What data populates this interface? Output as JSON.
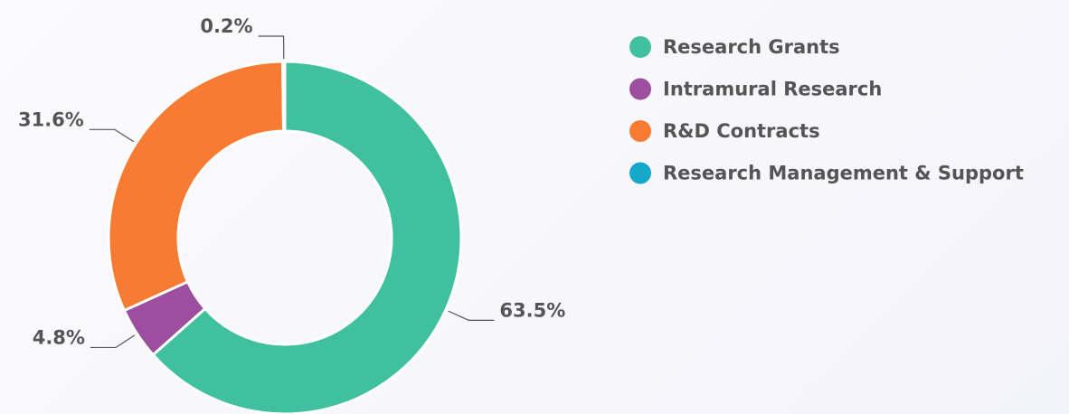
{
  "chart_data": {
    "type": "donut",
    "categories": [
      "Research Grants",
      "Intramural Research",
      "R&D Contracts",
      "Research Management & Support"
    ],
    "values": [
      63.5,
      4.8,
      31.6,
      0.2
    ],
    "value_labels": [
      "63.5%",
      "4.8%",
      "31.6%",
      "0.2%"
    ],
    "colors": [
      "#41c0a0",
      "#9b4f9e",
      "#f77b32",
      "#16a8c8"
    ],
    "legend": "right"
  }
}
